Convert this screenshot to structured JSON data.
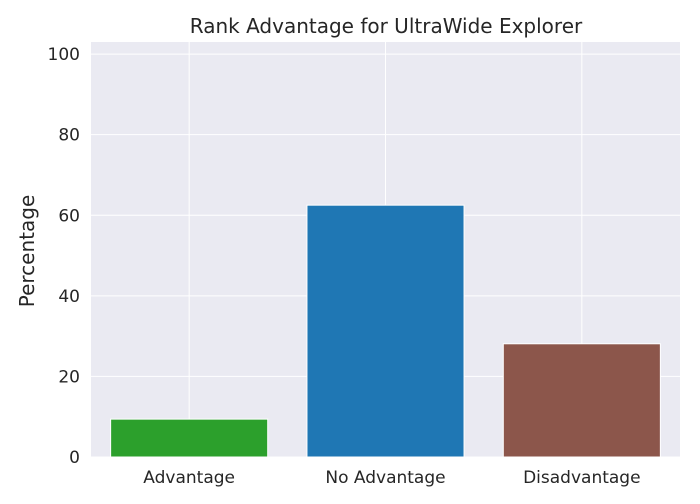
{
  "chart_data": {
    "type": "bar",
    "title": "Rank Advantage for UltraWide Explorer",
    "xlabel": "",
    "ylabel": "Percentage",
    "categories": [
      "Advantage",
      "No Advantage",
      "Disadvantage"
    ],
    "values": [
      9.4,
      62.5,
      28.1
    ],
    "colors": [
      "#2ca02c",
      "#1f77b4",
      "#8c564b"
    ],
    "ylim": [
      0,
      103
    ],
    "yticks": [
      0,
      20,
      40,
      60,
      80,
      100
    ],
    "grid": true,
    "plot_background": "#eaeaf2",
    "grid_color": "#ffffff"
  }
}
